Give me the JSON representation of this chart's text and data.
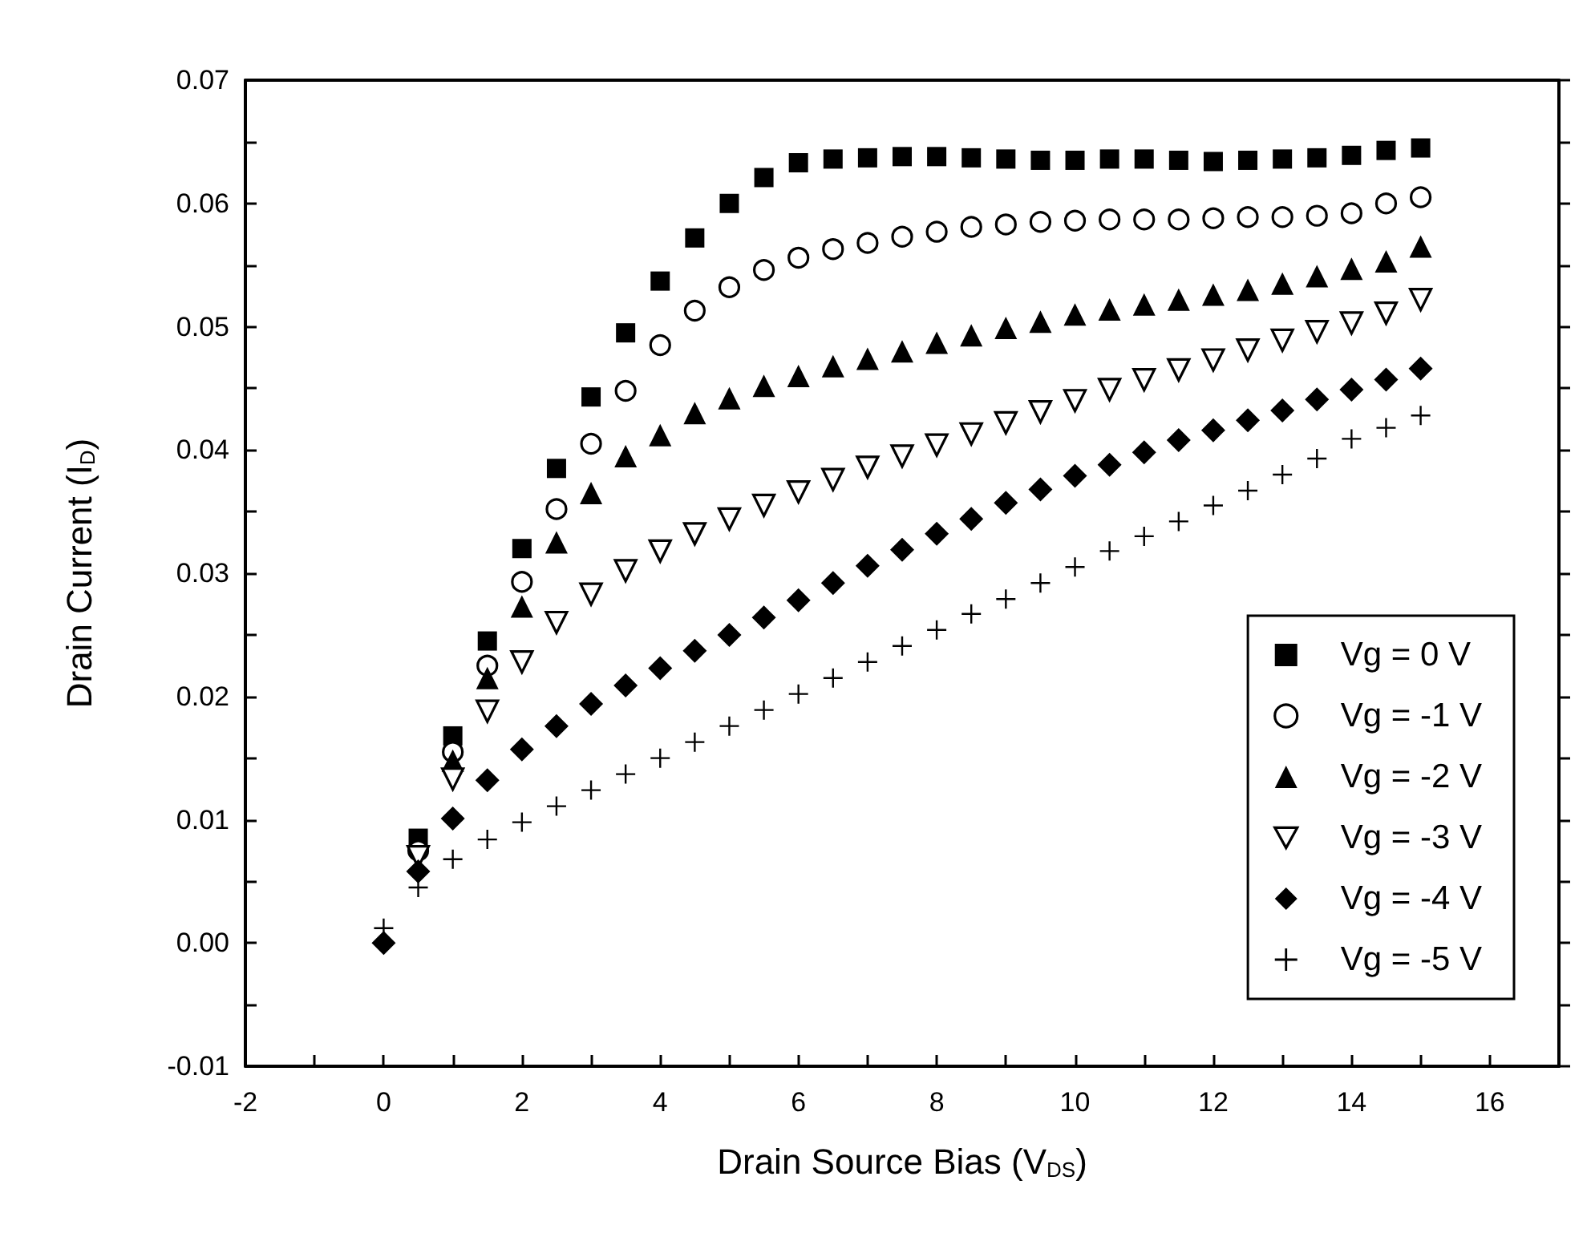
{
  "chart_data": {
    "type": "scatter",
    "xlabel": "Drain Source Bias (V$_{DS}$)",
    "ylabel": "Drain Current (I$_{D}$)",
    "x": [
      0,
      0.5,
      1,
      1.5,
      2,
      2.5,
      3,
      3.5,
      4,
      4.5,
      5,
      5.5,
      6,
      6.5,
      7,
      7.5,
      8,
      8.5,
      9,
      9.5,
      10,
      10.5,
      11,
      11.5,
      12,
      12.5,
      13,
      13.5,
      14,
      14.5,
      15
    ],
    "series": [
      {
        "name": "Vg = 0 V",
        "color": "#000000",
        "marker": "square",
        "values": [
          null,
          0.0085,
          0.0168,
          0.0245,
          0.032,
          0.0385,
          0.0443,
          0.0495,
          0.0537,
          0.0572,
          0.06,
          0.0621,
          0.0633,
          0.0636,
          0.0637,
          0.0638,
          0.0638,
          0.0637,
          0.0636,
          0.0635,
          0.0635,
          0.0636,
          0.0636,
          0.0635,
          0.0634,
          0.0635,
          0.0636,
          0.0637,
          0.0639,
          0.0643,
          0.0645
        ]
      },
      {
        "name": "Vg = -1 V",
        "color": "#000000",
        "marker": "circle",
        "values": [
          null,
          0.0075,
          0.0155,
          0.0225,
          0.0293,
          0.0352,
          0.0405,
          0.0448,
          0.0485,
          0.0513,
          0.0532,
          0.0546,
          0.0556,
          0.0563,
          0.0568,
          0.0573,
          0.0577,
          0.0581,
          0.0583,
          0.0585,
          0.0586,
          0.0587,
          0.0587,
          0.0587,
          0.0588,
          0.0589,
          0.0589,
          0.059,
          0.0592,
          0.06,
          0.0605
        ]
      },
      {
        "name": "Vg = -2 V",
        "color": "#000000",
        "marker": "triangle",
        "values": [
          null,
          null,
          0.0148,
          0.0215,
          0.0273,
          0.0325,
          0.0365,
          0.0395,
          0.0412,
          0.043,
          0.0442,
          0.0452,
          0.046,
          0.0468,
          0.0474,
          0.048,
          0.0487,
          0.0493,
          0.0499,
          0.0504,
          0.051,
          0.0514,
          0.0518,
          0.0522,
          0.0526,
          0.053,
          0.0535,
          0.0541,
          0.0547,
          0.0553,
          0.0565
        ]
      },
      {
        "name": "Vg = -3 V",
        "color": "#000000",
        "marker": "triangle_down_open",
        "values": [
          null,
          0.007,
          0.0133,
          0.0188,
          0.0228,
          0.026,
          0.0283,
          0.0302,
          0.0318,
          0.0332,
          0.0344,
          0.0355,
          0.0366,
          0.0376,
          0.0386,
          0.0395,
          0.0404,
          0.0413,
          0.0422,
          0.0431,
          0.044,
          0.0449,
          0.0457,
          0.0465,
          0.0473,
          0.0481,
          0.0489,
          0.0496,
          0.0503,
          0.0511,
          0.0522
        ]
      },
      {
        "name": "Vg = -4 V",
        "color": "#000000",
        "marker": "diamond",
        "values": [
          0,
          0.0058,
          0.0101,
          0.0132,
          0.0157,
          0.0176,
          0.0194,
          0.0209,
          0.0223,
          0.0237,
          0.025,
          0.0264,
          0.0278,
          0.0292,
          0.0306,
          0.0319,
          0.0332,
          0.0344,
          0.0357,
          0.0368,
          0.0379,
          0.0388,
          0.0398,
          0.0408,
          0.0416,
          0.0424,
          0.0432,
          0.0441,
          0.0449,
          0.0457,
          0.0466
        ]
      },
      {
        "name": "Vg = -5 V",
        "color": "#000000",
        "marker": "cross",
        "values": [
          0.0012,
          0.0045,
          0.0068,
          0.0084,
          0.0098,
          0.0111,
          0.0124,
          0.0137,
          0.015,
          0.0163,
          0.0176,
          0.0189,
          0.0202,
          0.0215,
          0.0228,
          0.0241,
          0.0254,
          0.0267,
          0.0279,
          0.0292,
          0.0305,
          0.0318,
          0.033,
          0.0342,
          0.0355,
          0.0367,
          0.038,
          0.0393,
          0.0409,
          0.0418,
          0.0428
        ]
      }
    ],
    "xlim": [
      -2,
      17
    ],
    "xticks": [
      -2,
      {
        "value": -1,
        "label": null
      },
      0,
      {
        "value": 1,
        "label": null
      },
      2,
      {
        "value": 3,
        "label": null
      },
      4,
      {
        "value": 5,
        "label": null
      },
      6,
      {
        "value": 7,
        "label": null
      },
      8,
      {
        "value": 9,
        "label": null
      },
      10,
      {
        "value": 11,
        "label": null
      },
      12,
      {
        "value": 13,
        "label": null
      },
      14,
      {
        "value": 15,
        "label": null
      },
      16
    ],
    "ylim": [
      -0.01,
      0.07
    ],
    "yticks": [
      -0.01,
      {
        "value": -0.005,
        "label": null
      },
      {
        "value": 0,
        "label": "0.00"
      },
      {
        "value": 0.005,
        "label": null
      },
      0.01,
      {
        "value": 0.015,
        "label": null
      },
      0.02,
      {
        "value": 0.025,
        "label": null
      },
      0.03,
      {
        "value": 0.035,
        "label": null
      },
      0.04,
      {
        "value": 0.045,
        "label": null
      },
      0.05,
      {
        "value": 0.055,
        "label": null
      },
      0.06,
      {
        "value": 0.065,
        "label": null
      },
      0.07
    ],
    "grid": false,
    "legend": "bottom right"
  }
}
